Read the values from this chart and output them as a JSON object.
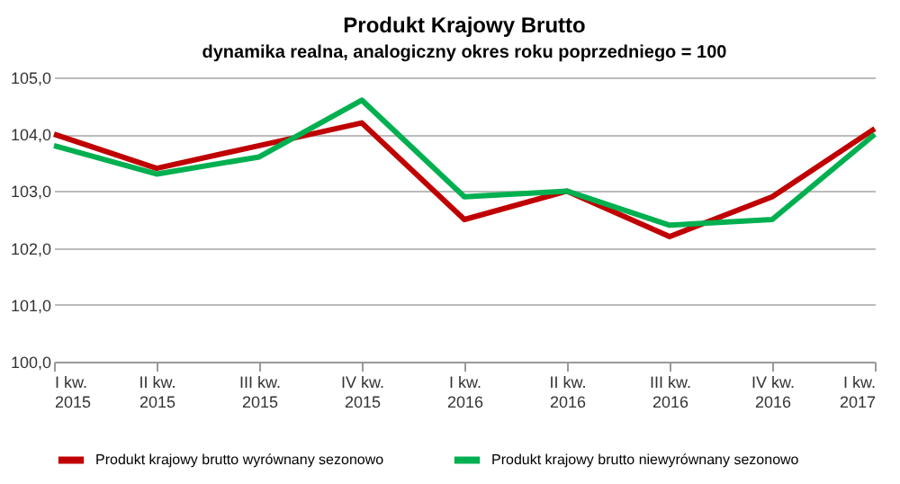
{
  "chart_data": {
    "type": "line",
    "title": "Produkt Krajowy Brutto",
    "subtitle": "dynamika realna, analogiczny okres roku poprzedniego = 100",
    "categories": [
      "I kw.\n2015",
      "II kw.\n2015",
      "III kw.\n2015",
      "IV kw.\n2015",
      "I kw.\n2016",
      "II kw.\n2016",
      "III kw.\n2016",
      "IV kw.\n2016",
      "I kw.\n2017"
    ],
    "series": [
      {
        "name": "Produkt krajowy brutto wyrównany sezonowo",
        "color": "#c00000",
        "values": [
          104.0,
          103.4,
          103.8,
          104.2,
          102.5,
          103.0,
          102.2,
          102.9,
          104.1
        ]
      },
      {
        "name": "Produkt krajowy brutto niewyrównany sezonowo",
        "color": "#00b050",
        "values": [
          103.8,
          103.3,
          103.6,
          104.6,
          102.9,
          103.0,
          102.4,
          102.5,
          104.0
        ]
      }
    ],
    "ylim": [
      100,
      105
    ],
    "yticks": [
      {
        "value": 100,
        "label": "100,0"
      },
      {
        "value": 101,
        "label": "101,0"
      },
      {
        "value": 102,
        "label": "102,0"
      },
      {
        "value": 103,
        "label": "103,0"
      },
      {
        "value": 104,
        "label": "104,0"
      },
      {
        "value": 105,
        "label": "105,0"
      }
    ],
    "grid": "y",
    "legend": "bottom",
    "marker": "none",
    "line_style": "solid"
  }
}
